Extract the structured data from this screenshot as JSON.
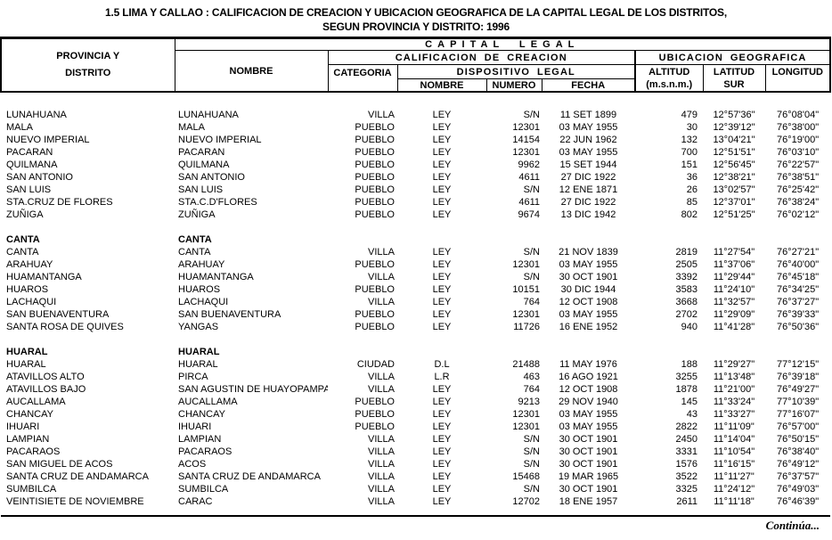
{
  "title": {
    "line1": "1.5  LIMA Y CALLAO : CALIFICACION DE CREACION Y UBICACION GEOGRAFICA DE LA CAPITAL LEGAL DE LOS DISTRITOS,",
    "line2": "SEGUN PROVINCIA Y DISTRITO: 1996"
  },
  "colors": {
    "header_bg": "#00FFFF",
    "border": "#000000",
    "text": "#000000"
  },
  "header": {
    "provincia_line1": "PROVINCIA Y",
    "provincia_line2": "DISTRITO",
    "capital_legal": "CAPITAL LEGAL",
    "nombre": "NOMBRE",
    "calificacion_creacion": "CALIFICACION DE CREACION",
    "ubicacion_geografica": "UBICACION GEOGRAFICA",
    "categoria": "CATEGORIA",
    "dispositivo_legal": "DISPOSITIVO LEGAL",
    "disp_nombre": "NOMBRE",
    "disp_numero": "NUMERO",
    "disp_fecha": "FECHA",
    "altitud_line1": "ALTITUD",
    "altitud_line2": "(m.s.n.m.)",
    "latitud_line1": "LATITUD",
    "latitud_line2": "SUR",
    "longitud": "LONGITUD"
  },
  "footer": {
    "continues": "Continúa..."
  },
  "table": {
    "sections": [
      {
        "province": null,
        "capital": null,
        "rows": [
          {
            "distrito": "LUNAHUANA",
            "nombre": "LUNAHUANA",
            "categoria": "VILLA",
            "disp": "LEY",
            "numero": "S/N",
            "fecha": "11 SET 1899",
            "altitud": "479",
            "latitud": "12°57'36\"",
            "longitud": "76°08'04\""
          },
          {
            "distrito": "MALA",
            "nombre": "MALA",
            "categoria": "PUEBLO",
            "disp": "LEY",
            "numero": "12301",
            "fecha": "03 MAY 1955",
            "altitud": "30",
            "latitud": "12°39'12\"",
            "longitud": "76°38'00\""
          },
          {
            "distrito": "NUEVO IMPERIAL",
            "nombre": "NUEVO IMPERIAL",
            "categoria": "PUEBLO",
            "disp": "LEY",
            "numero": "14154",
            "fecha": "22 JUN 1962",
            "altitud": "132",
            "latitud": "13°04'21\"",
            "longitud": "76°19'00\""
          },
          {
            "distrito": "PACARAN",
            "nombre": "PACARAN",
            "categoria": "PUEBLO",
            "disp": "LEY",
            "numero": "12301",
            "fecha": "03 MAY 1955",
            "altitud": "700",
            "latitud": "12°51'51\"",
            "longitud": "76°03'10\""
          },
          {
            "distrito": "QUILMANA",
            "nombre": "QUILMANA",
            "categoria": "PUEBLO",
            "disp": "LEY",
            "numero": "9962",
            "fecha": "15 SET 1944",
            "altitud": "151",
            "latitud": "12°56'45\"",
            "longitud": "76°22'57\""
          },
          {
            "distrito": "SAN ANTONIO",
            "nombre": "SAN ANTONIO",
            "categoria": "PUEBLO",
            "disp": "LEY",
            "numero": "4611",
            "fecha": "27 DIC 1922",
            "altitud": "36",
            "latitud": "12°38'21\"",
            "longitud": "76°38'51\""
          },
          {
            "distrito": "SAN LUIS",
            "nombre": "SAN LUIS",
            "categoria": "PUEBLO",
            "disp": "LEY",
            "numero": "S/N",
            "fecha": "12 ENE 1871",
            "altitud": "26",
            "latitud": "13°02'57\"",
            "longitud": "76°25'42\""
          },
          {
            "distrito": "STA.CRUZ DE FLORES",
            "nombre": "STA.C.D'FLORES",
            "categoria": "PUEBLO",
            "disp": "LEY",
            "numero": "4611",
            "fecha": "27 DIC 1922",
            "altitud": "85",
            "latitud": "12°37'01\"",
            "longitud": "76°38'24\""
          },
          {
            "distrito": "ZUÑIGA",
            "nombre": "ZUÑIGA",
            "categoria": "PUEBLO",
            "disp": "LEY",
            "numero": "9674",
            "fecha": "13 DIC 1942",
            "altitud": "802",
            "latitud": "12°51'25\"",
            "longitud": "76°02'12\""
          }
        ]
      },
      {
        "province": "CANTA",
        "capital": "CANTA",
        "rows": [
          {
            "distrito": "CANTA",
            "nombre": "CANTA",
            "categoria": "VILLA",
            "disp": "LEY",
            "numero": "S/N",
            "fecha": "21 NOV 1839",
            "altitud": "2819",
            "latitud": "11°27'54\"",
            "longitud": "76°27'21\""
          },
          {
            "distrito": "ARAHUAY",
            "nombre": "ARAHUAY",
            "categoria": "PUEBLO",
            "disp": "LEY",
            "numero": "12301",
            "fecha": "03 MAY 1955",
            "altitud": "2505",
            "latitud": "11°37'06\"",
            "longitud": "76°40'00\""
          },
          {
            "distrito": "HUAMANTANGA",
            "nombre": "HUAMANTANGA",
            "categoria": "VILLA",
            "disp": "LEY",
            "numero": "S/N",
            "fecha": "30 OCT 1901",
            "altitud": "3392",
            "latitud": "11°29'44\"",
            "longitud": "76°45'18\""
          },
          {
            "distrito": "HUAROS",
            "nombre": "HUAROS",
            "categoria": "PUEBLO",
            "disp": "LEY",
            "numero": "10151",
            "fecha": "30 DIC 1944",
            "altitud": "3583",
            "latitud": "11°24'10\"",
            "longitud": "76°34'25\""
          },
          {
            "distrito": "LACHAQUI",
            "nombre": "LACHAQUI",
            "categoria": "VILLA",
            "disp": "LEY",
            "numero": "764",
            "fecha": "12 OCT 1908",
            "altitud": "3668",
            "latitud": "11°32'57\"",
            "longitud": "76°37'27\""
          },
          {
            "distrito": "SAN BUENAVENTURA",
            "nombre": "SAN BUENAVENTURA",
            "categoria": "PUEBLO",
            "disp": "LEY",
            "numero": "12301",
            "fecha": "03 MAY 1955",
            "altitud": "2702",
            "latitud": "11°29'09\"",
            "longitud": "76°39'33\""
          },
          {
            "distrito": "SANTA ROSA DE QUIVES",
            "nombre": "YANGAS",
            "categoria": "PUEBLO",
            "disp": "LEY",
            "numero": "11726",
            "fecha": "16 ENE 1952",
            "altitud": "940",
            "latitud": "11°41'28\"",
            "longitud": "76°50'36\""
          }
        ]
      },
      {
        "province": "HUARAL",
        "capital": "HUARAL",
        "rows": [
          {
            "distrito": "HUARAL",
            "nombre": "HUARAL",
            "categoria": "CIUDAD",
            "disp": "D.L",
            "numero": "21488",
            "fecha": "11 MAY 1976",
            "altitud": "188",
            "latitud": "11°29'27\"",
            "longitud": "77°12'15\""
          },
          {
            "distrito": "ATAVILLOS ALTO",
            "nombre": "PIRCA",
            "categoria": "VILLA",
            "disp": "L.R",
            "numero": "463",
            "fecha": "16 AGO 1921",
            "altitud": "3255",
            "latitud": "11°13'48\"",
            "longitud": "76°39'18\""
          },
          {
            "distrito": "ATAVILLOS BAJO",
            "nombre": "SAN AGUSTIN DE HUAYOPAMPA",
            "categoria": "VILLA",
            "disp": "LEY",
            "numero": "764",
            "fecha": "12 OCT 1908",
            "altitud": "1878",
            "latitud": "11°21'00\"",
            "longitud": "76°49'27\""
          },
          {
            "distrito": "AUCALLAMA",
            "nombre": "AUCALLAMA",
            "categoria": "PUEBLO",
            "disp": "LEY",
            "numero": "9213",
            "fecha": "29 NOV 1940",
            "altitud": "145",
            "latitud": "11°33'24\"",
            "longitud": "77°10'39\""
          },
          {
            "distrito": "CHANCAY",
            "nombre": "CHANCAY",
            "categoria": "PUEBLO",
            "disp": "LEY",
            "numero": "12301",
            "fecha": "03 MAY 1955",
            "altitud": "43",
            "latitud": "11°33'27\"",
            "longitud": "77°16'07\""
          },
          {
            "distrito": "IHUARI",
            "nombre": "IHUARI",
            "categoria": "PUEBLO",
            "disp": "LEY",
            "numero": "12301",
            "fecha": "03 MAY 1955",
            "altitud": "2822",
            "latitud": "11°11'09\"",
            "longitud": "76°57'00\""
          },
          {
            "distrito": "LAMPIAN",
            "nombre": "LAMPIAN",
            "categoria": "VILLA",
            "disp": "LEY",
            "numero": "S/N",
            "fecha": "30 OCT 1901",
            "altitud": "2450",
            "latitud": "11°14'04\"",
            "longitud": "76°50'15\""
          },
          {
            "distrito": "PACARAOS",
            "nombre": "PACARAOS",
            "categoria": "VILLA",
            "disp": "LEY",
            "numero": "S/N",
            "fecha": "30 OCT 1901",
            "altitud": "3331",
            "latitud": "11°10'54\"",
            "longitud": "76°38'40\""
          },
          {
            "distrito": "SAN MIGUEL DE ACOS",
            "nombre": "ACOS",
            "categoria": "VILLA",
            "disp": "LEY",
            "numero": "S/N",
            "fecha": "30 OCT 1901",
            "altitud": "1576",
            "latitud": "11°16'15\"",
            "longitud": "76°49'12\""
          },
          {
            "distrito": "SANTA CRUZ DE ANDAMARCA",
            "nombre": "SANTA CRUZ DE ANDAMARCA",
            "categoria": "VILLA",
            "disp": "LEY",
            "numero": "15468",
            "fecha": "19 MAR 1965",
            "altitud": "3522",
            "latitud": "11°11'27\"",
            "longitud": "76°37'57\""
          },
          {
            "distrito": "SUMBILCA",
            "nombre": "SUMBILCA",
            "categoria": "VILLA",
            "disp": "LEY",
            "numero": "S/N",
            "fecha": "30 OCT 1901",
            "altitud": "3325",
            "latitud": "11°24'12\"",
            "longitud": "76°49'03\""
          },
          {
            "distrito": "VEINTISIETE DE NOVIEMBRE",
            "nombre": "CARAC",
            "categoria": "VILLA",
            "disp": "LEY",
            "numero": "12702",
            "fecha": "18 ENE 1957",
            "altitud": "2611",
            "latitud": "11°11'18\"",
            "longitud": "76°46'39\""
          }
        ]
      }
    ]
  }
}
